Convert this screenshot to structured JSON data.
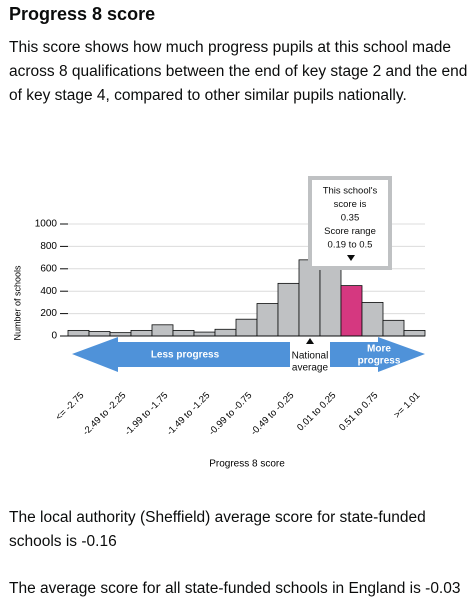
{
  "heading": "Progress 8 score",
  "intro": "This score shows how much progress pupils at this school made across 8 qualifications between the end of key stage 2 and the end of key stage 4, compared to other similar pupils nationally.",
  "local_authority": "The local authority (Sheffield) average score for state-funded schools is -0.16",
  "england": "The average score for all state-funded schools in England is -0.03",
  "chart_data": {
    "type": "bar",
    "xlabel": "Progress 8 score",
    "ylabel": "Number of schools",
    "categories": [
      "<= -2.75",
      null,
      "-2.49 to -2.25",
      null,
      "-1.99 to -1.75",
      null,
      "-1.49 to -1.25",
      null,
      "-0.99 to -0.75",
      null,
      "-0.49 to -0.25",
      null,
      "0.01 to 0.25",
      null,
      "0.51 to 0.75",
      null,
      ">= 1.01"
    ],
    "values": [
      50,
      40,
      30,
      50,
      100,
      50,
      35,
      60,
      150,
      290,
      470,
      680,
      650,
      450,
      300,
      140,
      50
    ],
    "colors": [
      "#bfc1c3",
      "#bfc1c3",
      "#bfc1c3",
      "#bfc1c3",
      "#bfc1c3",
      "#bfc1c3",
      "#bfc1c3",
      "#bfc1c3",
      "#bfc1c3",
      "#bfc1c3",
      "#bfc1c3",
      "#bfc1c3",
      "#bfc1c3",
      "#d53880",
      "#bfc1c3",
      "#bfc1c3",
      "#bfc1c3"
    ],
    "ylim": [
      0,
      1000
    ],
    "yticks": [
      0,
      200,
      400,
      600,
      800,
      1000
    ],
    "grid": true,
    "tooltip": [
      "This school's",
      "score is",
      "0.35",
      "Score range",
      "0.19 to 0.5"
    ],
    "less_progress": "Less progress",
    "more_progress": [
      "More",
      "progress"
    ],
    "national_average": [
      "National",
      "average"
    ]
  }
}
